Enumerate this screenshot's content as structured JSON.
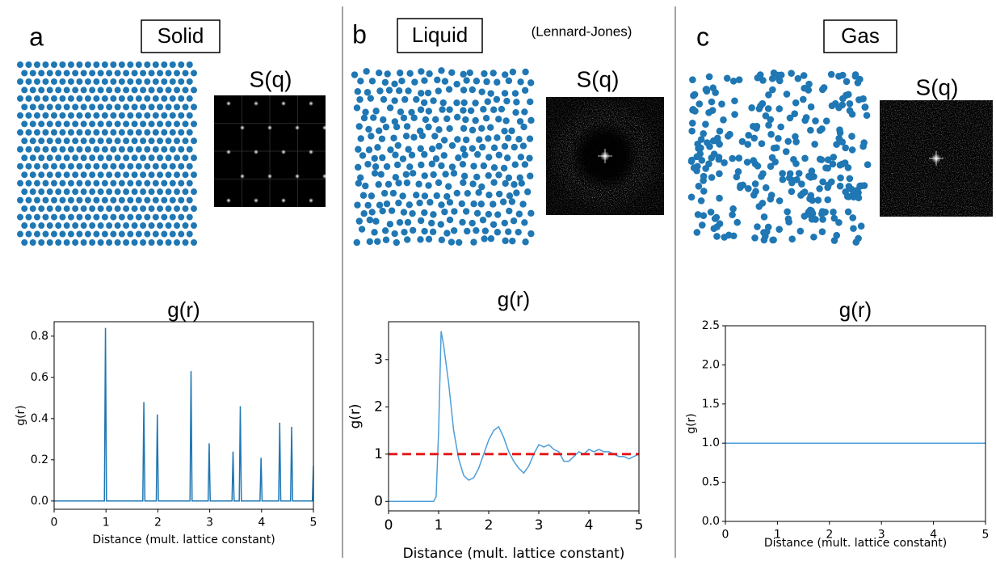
{
  "panels": [
    {
      "letter": "a",
      "phase": "Solid",
      "sq_title": "S(q)"
    },
    {
      "letter": "b",
      "phase": "Liquid",
      "note": "(Lennard-Jones)",
      "sq_title": "S(q)"
    },
    {
      "letter": "c",
      "phase": "Gas",
      "sq_title": "S(q)"
    }
  ],
  "chart_data": [
    {
      "type": "line",
      "title": "g(r)",
      "xlabel": "Distance (mult. lattice constant)",
      "ylabel": "g(r)",
      "x": [
        0,
        0.97,
        0.99,
        1.01,
        1.71,
        1.73,
        1.75,
        1.97,
        1.99,
        2.01,
        2.62,
        2.64,
        2.66,
        2.97,
        2.99,
        3.01,
        3.43,
        3.45,
        3.47,
        3.57,
        3.59,
        3.61,
        3.97,
        3.99,
        4.01,
        4.33,
        4.35,
        4.37,
        4.56,
        4.58,
        4.6,
        4.98,
        5.0
      ],
      "series": [
        {
          "color": "#1f77b4",
          "values": [
            0,
            0,
            0.84,
            0,
            0,
            0.48,
            0,
            0,
            0.42,
            0,
            0,
            0.63,
            0,
            0,
            0.28,
            0,
            0,
            0.24,
            0,
            0,
            0.46,
            0,
            0,
            0.21,
            0,
            0,
            0.38,
            0,
            0,
            0.36,
            0,
            0,
            0.17
          ]
        }
      ],
      "xlim": [
        0,
        5
      ],
      "ylim": [
        -0.04,
        0.87
      ],
      "xticks": [
        0,
        1,
        2,
        3,
        4,
        5
      ],
      "yticks": [
        {
          "value": 0,
          "label": "0.0"
        },
        0.2,
        0.4,
        0.6,
        0.8
      ]
    },
    {
      "type": "line",
      "title": "g(r)",
      "xlabel": "Distance (mult. lattice constant)",
      "ylabel": "g(r)",
      "x": [
        0,
        0.9,
        0.95,
        1.0,
        1.05,
        1.1,
        1.2,
        1.3,
        1.4,
        1.5,
        1.6,
        1.7,
        1.8,
        1.9,
        2.0,
        2.1,
        2.2,
        2.3,
        2.4,
        2.5,
        2.6,
        2.7,
        2.8,
        2.9,
        3.0,
        3.1,
        3.2,
        3.3,
        3.4,
        3.5,
        3.6,
        3.7,
        3.8,
        3.9,
        4.0,
        4.1,
        4.2,
        4.3,
        4.4,
        4.5,
        4.6,
        4.7,
        4.8,
        4.9,
        5.0
      ],
      "series": [
        {
          "color": "#4c9ed9",
          "values": [
            0,
            0,
            0.1,
            1.5,
            3.6,
            3.3,
            2.5,
            1.5,
            0.9,
            0.55,
            0.45,
            0.5,
            0.7,
            1.0,
            1.3,
            1.5,
            1.58,
            1.35,
            1.05,
            0.85,
            0.7,
            0.6,
            0.75,
            1.0,
            1.2,
            1.15,
            1.2,
            1.1,
            1.05,
            0.85,
            0.85,
            0.95,
            1.05,
            1.0,
            1.1,
            1.05,
            1.1,
            1.05,
            1.05,
            1.0,
            0.95,
            0.95,
            0.9,
            0.95,
            1.0
          ]
        }
      ],
      "reference_line": {
        "value": 1,
        "color": "#e41a1c",
        "style": "dashed"
      },
      "xlim": [
        0,
        5
      ],
      "ylim": [
        -0.2,
        3.8
      ],
      "xticks": [
        0,
        1,
        2,
        3,
        4,
        5
      ],
      "yticks": [
        0,
        1,
        2,
        3
      ]
    },
    {
      "type": "line",
      "title": "g(r)",
      "xlabel": "Distance (mult. lattice constant)",
      "ylabel": "g(r)",
      "x": [
        0,
        5
      ],
      "series": [
        {
          "color": "#4c9ed9",
          "values": [
            1,
            1
          ]
        }
      ],
      "xlim": [
        0,
        5
      ],
      "ylim": [
        0,
        2.5
      ],
      "xticks": [
        0,
        1,
        2,
        3,
        4,
        5
      ],
      "yticks": [
        {
          "value": 0,
          "label": "0.0"
        },
        0.5,
        {
          "value": 1,
          "label": "1.0"
        },
        1.5,
        {
          "value": 2,
          "label": "2.0"
        },
        2.5
      ]
    }
  ]
}
